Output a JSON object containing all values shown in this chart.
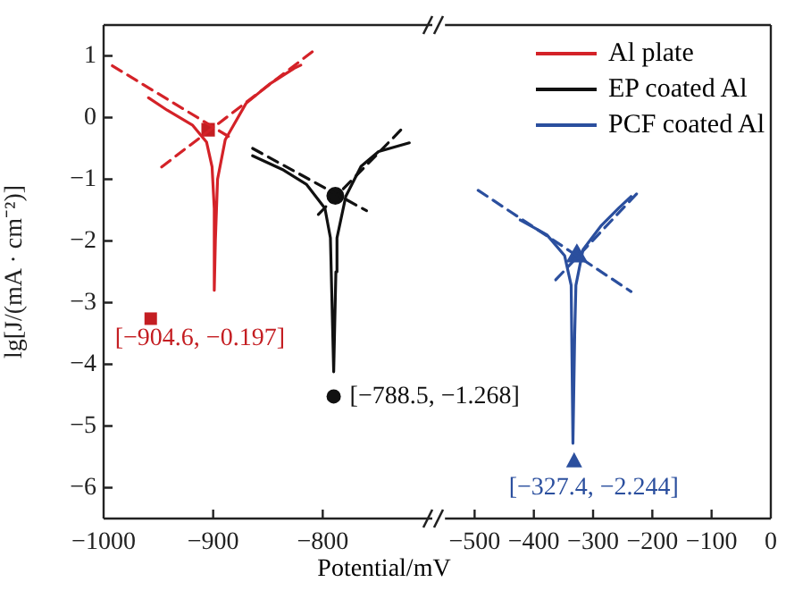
{
  "chart_data": [
    {
      "type": "line",
      "xlabel": "Potential/mV",
      "ylabel": "lg[J/(mA · cm⁻²)]",
      "xlim": [
        -1000,
        -700
      ],
      "xticks": [
        -1000,
        -900,
        -800
      ],
      "ylim": [
        -6.5,
        1.5
      ],
      "yticks": [
        1,
        0,
        -1,
        -2,
        -3,
        -4,
        -5,
        -6
      ],
      "grid": false,
      "legend": "top right",
      "marker": "none",
      "series": [
        {
          "name": "Al plate",
          "color": "#d42228",
          "type": "line",
          "line_style": "solid",
          "x": [
            -959,
            -942,
            -919,
            -906,
            -901,
            -899,
            -899,
            -898,
            -896,
            -889,
            -870,
            -848,
            -826,
            -820
          ],
          "values": [
            0.32,
            0.12,
            -0.12,
            -0.4,
            -0.8,
            -1.48,
            -2.8,
            -2.0,
            -1.0,
            -0.36,
            0.23,
            0.55,
            0.8,
            0.85
          ]
        },
        {
          "color": "#d42228",
          "type": "line",
          "line_style": "dashed",
          "x": [
            -992,
            -881
          ],
          "values": [
            0.84,
            -0.36
          ]
        },
        {
          "color": "#d42228",
          "type": "line",
          "line_style": "dashed",
          "x": [
            -947,
            -807
          ],
          "values": [
            -0.8,
            1.1
          ]
        },
        {
          "color": "#c41e22",
          "type": "scatter",
          "marker": "square",
          "x": [
            -904.6
          ],
          "values": [
            -0.197
          ]
        },
        {
          "name": "EP coated Al",
          "color": "#111111",
          "type": "line",
          "line_style": "solid",
          "x": [
            -864,
            -837,
            -815,
            -798,
            -793,
            -790,
            -788,
            -787,
            -779,
            -765,
            -749,
            -721
          ],
          "values": [
            -0.62,
            -0.84,
            -1.08,
            -1.47,
            -1.95,
            -4.12,
            -2.5,
            -1.95,
            -1.28,
            -0.79,
            -0.55,
            -0.41
          ]
        },
        {
          "color": "#111111",
          "type": "line",
          "line_style": "dashed",
          "x": [
            -804,
            -727
          ],
          "values": [
            -1.57,
            -0.17
          ]
        },
        {
          "color": "#111111",
          "type": "line",
          "line_style": "dashed",
          "x": [
            -864,
            -760
          ],
          "values": [
            -0.5,
            -1.51
          ]
        },
        {
          "color": "#111111",
          "type": "scatter",
          "marker": "circle",
          "x": [
            -788.5
          ],
          "values": [
            -1.268
          ]
        }
      ],
      "annotations": [
        {
          "text": "[−904.6, −0.197]",
          "x": -957,
          "y": -3.26
        },
        {
          "text": "[−788.5, −1.268]",
          "x": -790,
          "y": -4.52
        }
      ]
    },
    {
      "type": "line",
      "xlim": [
        -550,
        0
      ],
      "xticks": [
        -500,
        -400,
        -300,
        -200,
        -100,
        0
      ],
      "ylim": [
        -6.5,
        1.5
      ],
      "yticks": [
        1,
        0,
        -1,
        -2,
        -3,
        -4,
        -5,
        -6
      ],
      "tick_labels": "x",
      "grid": false,
      "legend": "top right",
      "marker": "none",
      "series": [
        {
          "name": "PCF coated Al",
          "color": "#2b4f9e",
          "type": "line",
          "line_style": "solid",
          "x": [
            -423,
            -378,
            -348,
            -337,
            -334,
            -331,
            -329,
            -317,
            -287,
            -257,
            -236
          ],
          "values": [
            -1.66,
            -1.9,
            -2.24,
            -2.72,
            -5.28,
            -3.5,
            -2.72,
            -2.14,
            -1.76,
            -1.47,
            -1.28
          ]
        },
        {
          "color": "#2b4f9e",
          "type": "line",
          "line_style": "dashed",
          "x": [
            -494,
            -236
          ],
          "values": [
            -1.18,
            -2.82
          ]
        },
        {
          "color": "#2b4f9e",
          "type": "line",
          "line_style": "dashed",
          "x": [
            -363,
            -221
          ],
          "values": [
            -2.63,
            -1.18
          ]
        },
        {
          "color": "#2b4f9e",
          "type": "scatter",
          "marker": "triangle",
          "x": [
            -327.4
          ],
          "values": [
            -2.244
          ]
        }
      ],
      "annotations": [
        {
          "text": "[−327.4, −2.244]",
          "x": -332,
          "y": -5.57
        }
      ]
    }
  ]
}
